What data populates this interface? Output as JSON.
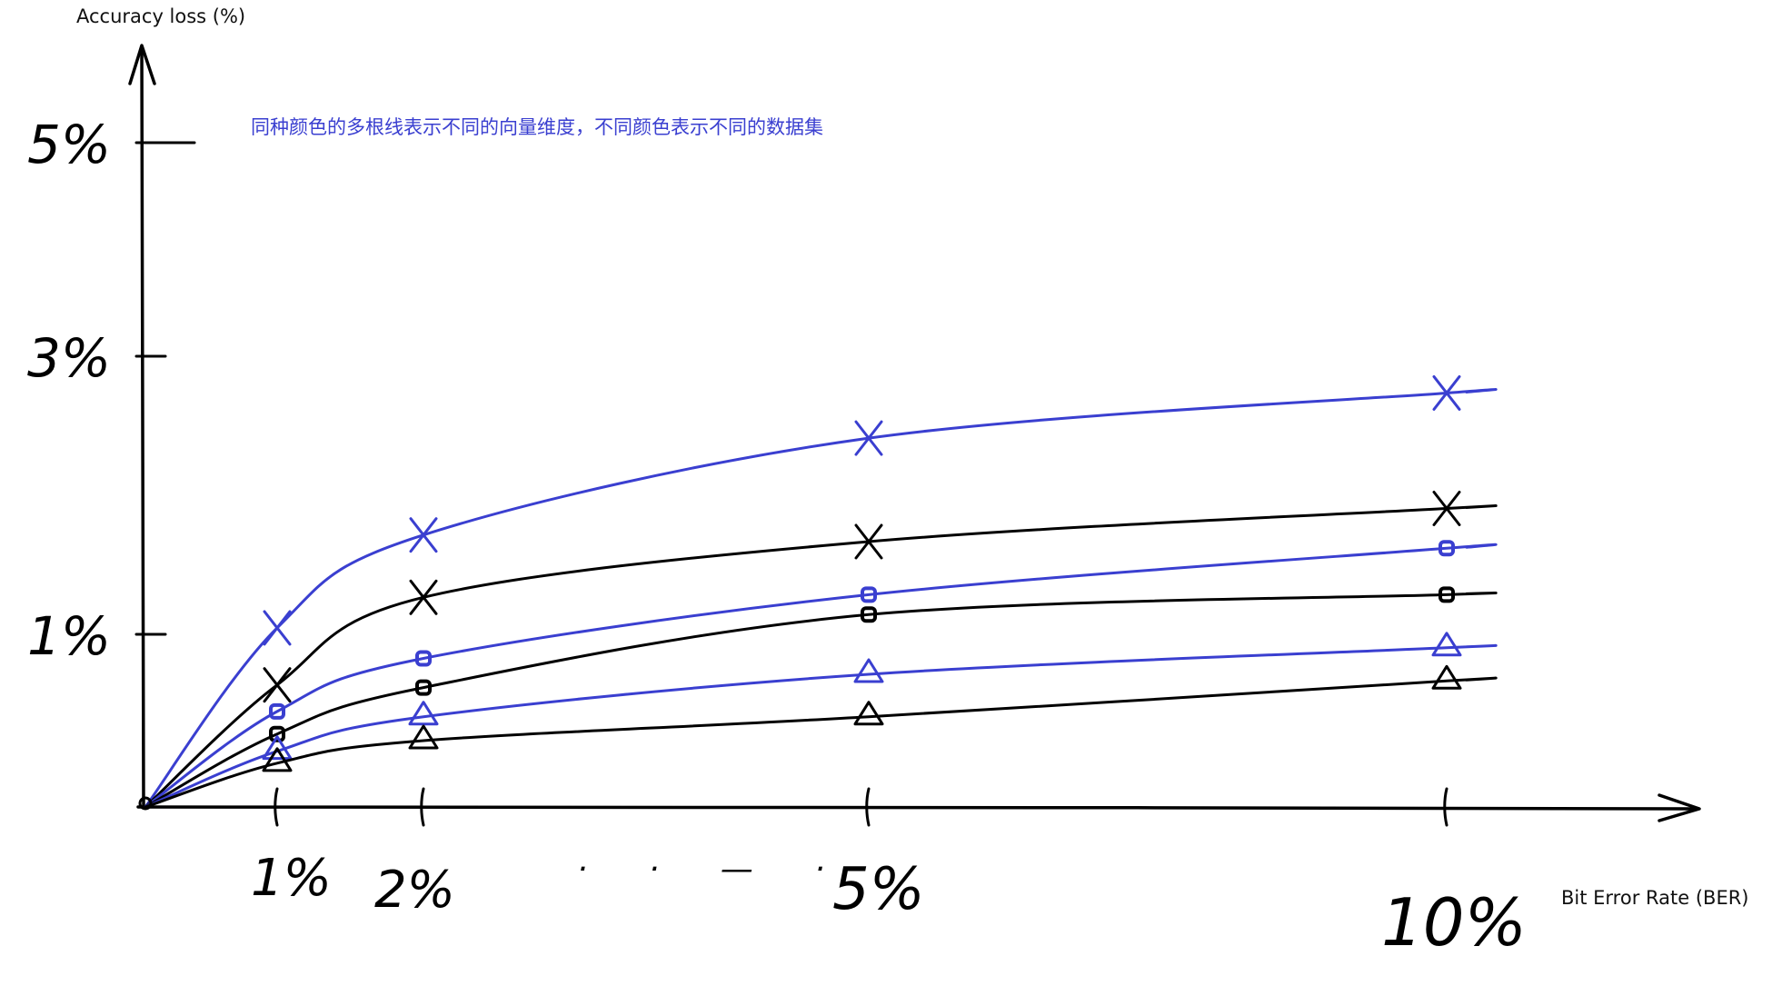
{
  "chart_data": {
    "type": "line",
    "ylabel": "Accuracy loss (%)",
    "xlabel": "Bit Error Rate (BER)",
    "annotation": "同种颜色的多根线表示不同的向量维度，不同颜色表示不同的数据集",
    "x": [
      0,
      1,
      2,
      5,
      10
    ],
    "x_tick_labels": [
      "1%",
      "2%",
      "5%",
      "10%"
    ],
    "x_ellipsis": "· · — ·",
    "y_tick_values": [
      1,
      3,
      5
    ],
    "y_tick_labels": [
      "1%",
      "3%",
      "5%"
    ],
    "ylim": [
      0,
      5
    ],
    "grid": false,
    "legend": "none",
    "colors": {
      "blue": "#3a3fd0",
      "black": "#000000"
    },
    "series": [
      {
        "color": "blue",
        "marker": "x",
        "values": [
          0,
          1.35,
          2.05,
          2.78,
          3.12
        ]
      },
      {
        "color": "black",
        "marker": "x",
        "values": [
          0,
          0.92,
          1.58,
          2.0,
          2.25
        ]
      },
      {
        "color": "blue",
        "marker": "square",
        "values": [
          0,
          0.72,
          1.12,
          1.6,
          1.95
        ]
      },
      {
        "color": "black",
        "marker": "square",
        "values": [
          0,
          0.55,
          0.9,
          1.45,
          1.6
        ]
      },
      {
        "color": "blue",
        "marker": "triangle",
        "values": [
          0,
          0.42,
          0.68,
          1.0,
          1.2
        ]
      },
      {
        "color": "black",
        "marker": "triangle",
        "values": [
          0,
          0.33,
          0.5,
          0.68,
          0.95
        ]
      }
    ]
  }
}
